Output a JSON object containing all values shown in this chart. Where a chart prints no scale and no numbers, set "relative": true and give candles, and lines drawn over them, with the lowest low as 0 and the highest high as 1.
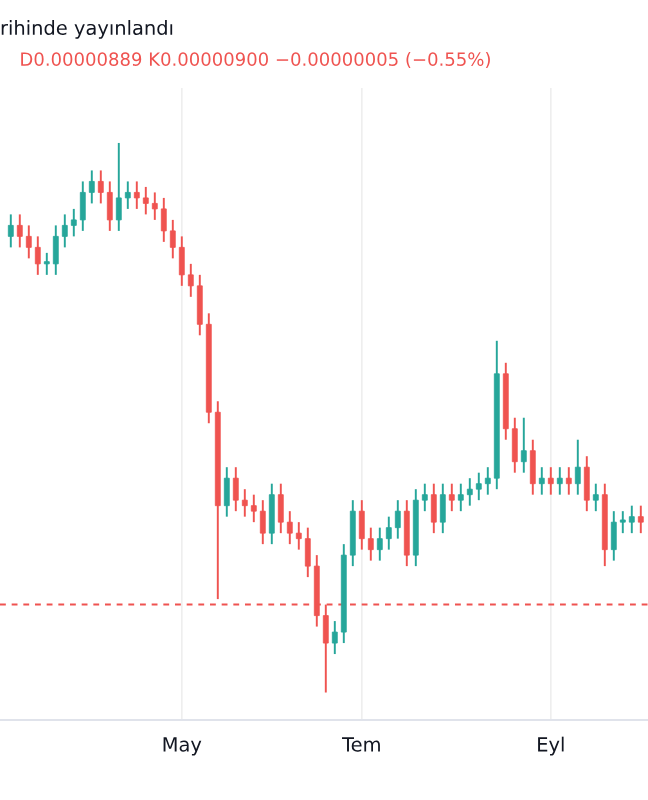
{
  "chart_data": {
    "type": "candlestick",
    "title": "rihinde yayınlandı",
    "subtitle": "D0.00000889 K0.00000900 −0.00000005 (−0.55%)",
    "relative": true,
    "colors": [
      "#26a69a",
      "#ef5350",
      "#ef5350",
      "#ef5350",
      "#26a69a",
      "#26a69a",
      "#26a69a",
      "#26a69a",
      "#26a69a",
      "#26a69a",
      "#ef5350",
      "#ef5350",
      "#26a69a",
      "#26a69a",
      "#ef5350",
      "#ef5350",
      "#ef5350",
      "#ef5350",
      "#ef5350",
      "#ef5350",
      "#ef5350",
      "#ef5350",
      "#ef5350",
      "#ef5350",
      "#26a69a",
      "#ef5350",
      "#ef5350",
      "#ef5350",
      "#ef5350",
      "#26a69a",
      "#ef5350",
      "#ef5350",
      "#ef5350",
      "#ef5350",
      "#ef5350",
      "#ef5350",
      "#26a69a",
      "#26a69a",
      "#26a69a",
      "#ef5350",
      "#ef5350",
      "#26a69a",
      "#26a69a",
      "#26a69a",
      "#ef5350",
      "#26a69a",
      "#26a69a",
      "#ef5350",
      "#26a69a",
      "#ef5350",
      "#26a69a",
      "#26a69a",
      "#26a69a",
      "#26a69a",
      "#26a69a",
      "#ef5350",
      "#ef5350",
      "#26a69a",
      "#ef5350",
      "#26a69a",
      "#ef5350",
      "#26a69a",
      "#ef5350",
      "#26a69a",
      "#ef5350",
      "#26a69a",
      "#ef5350",
      "#26a69a",
      "#26a69a",
      "#26a69a",
      "#ef5350"
    ],
    "grid": "x",
    "ref_lines": [
      {
        "axis": "y",
        "value": 0.16,
        "label": null,
        "color": "#ef5350",
        "line_style": "dashed"
      }
    ],
    "categories": [
      null,
      null,
      null,
      null,
      null,
      null,
      null,
      null,
      null,
      null,
      null,
      null,
      null,
      null,
      null,
      null,
      null,
      null,
      null,
      "May",
      null,
      null,
      null,
      null,
      null,
      null,
      null,
      null,
      null,
      null,
      null,
      null,
      null,
      null,
      null,
      null,
      null,
      null,
      null,
      "Tem",
      null,
      null,
      null,
      null,
      null,
      null,
      null,
      null,
      null,
      null,
      null,
      null,
      null,
      null,
      null,
      null,
      null,
      null,
      null,
      null,
      "Eyl",
      null,
      null,
      null,
      null,
      null,
      null,
      null,
      null,
      null,
      null
    ],
    "ohlc": [
      [
        0.83,
        0.87,
        0.81,
        0.85
      ],
      [
        0.85,
        0.87,
        0.81,
        0.83
      ],
      [
        0.83,
        0.85,
        0.79,
        0.81
      ],
      [
        0.81,
        0.83,
        0.76,
        0.78
      ],
      [
        0.78,
        0.8,
        0.76,
        0.78
      ],
      [
        0.78,
        0.85,
        0.76,
        0.83
      ],
      [
        0.83,
        0.87,
        0.81,
        0.85
      ],
      [
        0.85,
        0.88,
        0.83,
        0.86
      ],
      [
        0.86,
        0.93,
        0.84,
        0.91
      ],
      [
        0.91,
        0.95,
        0.89,
        0.93
      ],
      [
        0.93,
        0.95,
        0.89,
        0.91
      ],
      [
        0.91,
        0.93,
        0.84,
        0.86
      ],
      [
        0.86,
        1.0,
        0.84,
        0.9
      ],
      [
        0.9,
        0.93,
        0.88,
        0.91
      ],
      [
        0.91,
        0.93,
        0.88,
        0.9
      ],
      [
        0.9,
        0.92,
        0.87,
        0.89
      ],
      [
        0.89,
        0.91,
        0.86,
        0.88
      ],
      [
        0.88,
        0.9,
        0.82,
        0.84
      ],
      [
        0.84,
        0.86,
        0.79,
        0.81
      ],
      [
        0.81,
        0.83,
        0.74,
        0.76
      ],
      [
        0.76,
        0.78,
        0.72,
        0.74
      ],
      [
        0.74,
        0.76,
        0.65,
        0.67
      ],
      [
        0.67,
        0.69,
        0.49,
        0.51
      ],
      [
        0.51,
        0.53,
        0.17,
        0.34
      ],
      [
        0.34,
        0.41,
        0.32,
        0.39
      ],
      [
        0.39,
        0.41,
        0.33,
        0.35
      ],
      [
        0.35,
        0.37,
        0.32,
        0.34
      ],
      [
        0.34,
        0.36,
        0.31,
        0.33
      ],
      [
        0.33,
        0.35,
        0.27,
        0.29
      ],
      [
        0.29,
        0.38,
        0.27,
        0.36
      ],
      [
        0.36,
        0.38,
        0.29,
        0.31
      ],
      [
        0.31,
        0.33,
        0.27,
        0.29
      ],
      [
        0.29,
        0.31,
        0.26,
        0.28
      ],
      [
        0.28,
        0.3,
        0.21,
        0.23
      ],
      [
        0.23,
        0.25,
        0.12,
        0.14
      ],
      [
        0.14,
        0.16,
        0.0,
        0.09
      ],
      [
        0.09,
        0.13,
        0.07,
        0.11
      ],
      [
        0.11,
        0.27,
        0.09,
        0.25
      ],
      [
        0.25,
        0.35,
        0.23,
        0.33
      ],
      [
        0.33,
        0.35,
        0.26,
        0.28
      ],
      [
        0.28,
        0.3,
        0.24,
        0.26
      ],
      [
        0.26,
        0.3,
        0.24,
        0.28
      ],
      [
        0.28,
        0.32,
        0.26,
        0.3
      ],
      [
        0.3,
        0.35,
        0.28,
        0.33
      ],
      [
        0.33,
        0.35,
        0.23,
        0.25
      ],
      [
        0.25,
        0.37,
        0.23,
        0.35
      ],
      [
        0.35,
        0.38,
        0.33,
        0.36
      ],
      [
        0.36,
        0.38,
        0.29,
        0.31
      ],
      [
        0.31,
        0.38,
        0.29,
        0.36
      ],
      [
        0.36,
        0.38,
        0.33,
        0.35
      ],
      [
        0.35,
        0.38,
        0.33,
        0.36
      ],
      [
        0.36,
        0.39,
        0.34,
        0.37
      ],
      [
        0.37,
        0.4,
        0.35,
        0.38
      ],
      [
        0.38,
        0.41,
        0.36,
        0.39
      ],
      [
        0.39,
        0.64,
        0.37,
        0.58
      ],
      [
        0.58,
        0.6,
        0.46,
        0.48
      ],
      [
        0.48,
        0.5,
        0.4,
        0.42
      ],
      [
        0.42,
        0.5,
        0.4,
        0.44
      ],
      [
        0.44,
        0.46,
        0.36,
        0.38
      ],
      [
        0.38,
        0.41,
        0.36,
        0.39
      ],
      [
        0.39,
        0.41,
        0.36,
        0.38
      ],
      [
        0.38,
        0.41,
        0.36,
        0.39
      ],
      [
        0.39,
        0.41,
        0.36,
        0.38
      ],
      [
        0.38,
        0.46,
        0.36,
        0.41
      ],
      [
        0.41,
        0.43,
        0.33,
        0.35
      ],
      [
        0.35,
        0.38,
        0.33,
        0.36
      ],
      [
        0.36,
        0.38,
        0.23,
        0.26
      ],
      [
        0.26,
        0.33,
        0.24,
        0.31
      ],
      [
        0.31,
        0.33,
        0.29,
        0.31
      ],
      [
        0.31,
        0.34,
        0.29,
        0.32
      ],
      [
        0.32,
        0.34,
        0.29,
        0.31
      ]
    ]
  }
}
